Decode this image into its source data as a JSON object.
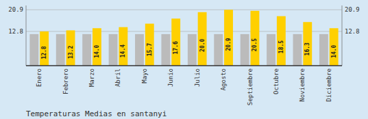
{
  "chart_data": {
    "type": "bar",
    "title": "Temperaturas Medias en santanyi",
    "categories": [
      "Enero",
      "Febrero",
      "Marzo",
      "Abril",
      "Mayo",
      "Junio",
      "Julio",
      "Agosto",
      "Septiembre",
      "Octubre",
      "Noviembre",
      "Diciembre"
    ],
    "series": [
      {
        "color": "#BBBBBB",
        "values": [
          11.8,
          11.8,
          11.8,
          11.8,
          11.8,
          11.8,
          11.8,
          11.8,
          11.8,
          11.8,
          11.8,
          11.8
        ]
      },
      {
        "color": "#FFD000",
        "values": [
          12.8,
          13.2,
          14.0,
          14.4,
          15.7,
          17.6,
          20.0,
          20.9,
          20.5,
          18.5,
          16.3,
          14.0
        ],
        "data_labels": true,
        "value_labels": [
          "12.8",
          "13.2",
          "14.0",
          "14.4",
          "15.7",
          "17.6",
          "20.0",
          "20.9",
          "20.5",
          "18.5",
          "16.3",
          "14.0"
        ]
      }
    ],
    "ylim": [
      0,
      22.5
    ],
    "yticks": [
      12.8,
      20.9
    ],
    "y2lim": [
      0,
      22.5
    ],
    "y2ticks": [
      12.8,
      20.9
    ],
    "grid": true
  }
}
